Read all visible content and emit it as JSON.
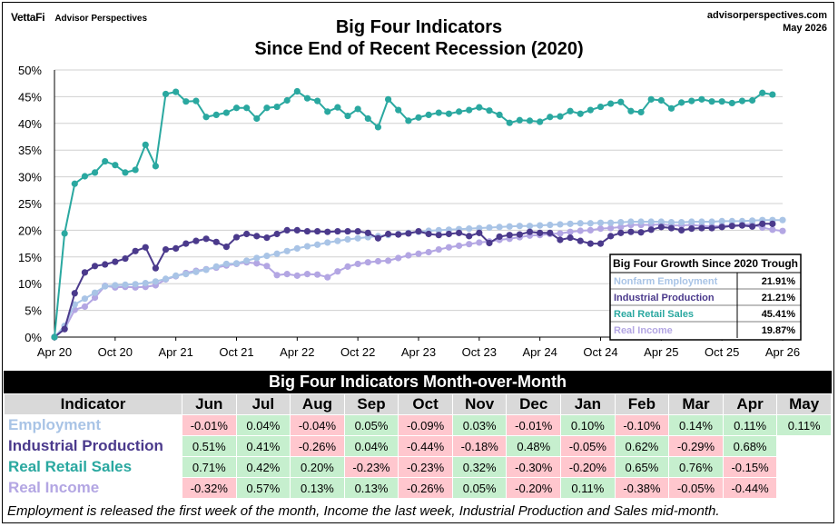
{
  "brand": {
    "logo": "VettaFi",
    "sub": "Advisor Perspectives"
  },
  "site": {
    "url": "advisorperspectives.com",
    "date": "May 2026"
  },
  "title": {
    "line1": "Big Four Indicators",
    "line2": "Since  End of Recent Recession (2020)"
  },
  "colors": {
    "employment": "#a9c4e6",
    "production": "#4b3a8c",
    "retail": "#2aa8a0",
    "income": "#b3a6e3"
  },
  "chart_data": {
    "type": "line",
    "y_ticks": [
      "0%",
      "5%",
      "10%",
      "15%",
      "20%",
      "25%",
      "30%",
      "35%",
      "40%",
      "45%",
      "50%"
    ],
    "ylim": [
      0,
      50
    ],
    "x_ticks": [
      {
        "label": "Apr 20",
        "i": 0
      },
      {
        "label": "Oct 20",
        "i": 6
      },
      {
        "label": "Apr 21",
        "i": 12
      },
      {
        "label": "Oct 21",
        "i": 18
      },
      {
        "label": "Apr 22",
        "i": 24
      },
      {
        "label": "Oct 22",
        "i": 30
      },
      {
        "label": "Apr 23",
        "i": 36
      },
      {
        "label": "Oct 23",
        "i": 42
      },
      {
        "label": "Apr 24",
        "i": 48
      },
      {
        "label": "Oct 24",
        "i": 54
      },
      {
        "label": "Apr 25",
        "i": 60
      },
      {
        "label": "Oct 25",
        "i": 66
      },
      {
        "label": "Apr 26",
        "i": 72
      }
    ],
    "x_start": "2020-04",
    "grid": true,
    "series": [
      {
        "name": "Real Retail Sales",
        "key": "retail",
        "values": [
          0,
          19.4,
          28.7,
          30.1,
          30.8,
          32.9,
          32.2,
          30.8,
          31.3,
          36,
          32,
          45.5,
          45.9,
          44.1,
          44.2,
          41.2,
          41.6,
          42,
          42.9,
          42.9,
          40.9,
          42.9,
          43.1,
          44.3,
          46,
          44.7,
          44.2,
          42.2,
          43,
          41.4,
          42.7,
          40.9,
          39.3,
          44.5,
          42.5,
          40.5,
          41.1,
          41.6,
          42,
          41.8,
          42.2,
          42.5,
          43,
          42.4,
          41.6,
          40.1,
          40.6,
          40.5,
          40.3,
          41.2,
          41.3,
          42.3,
          41.8,
          42.5,
          43.1,
          43.7,
          44,
          42.3,
          42.1,
          44.5,
          44.3,
          42.8,
          43.9,
          44.2,
          44.5,
          44.1,
          44.1,
          43.8,
          44.2,
          44.3,
          45.7,
          45.4
        ]
      },
      {
        "name": "Industrial Production",
        "key": "production",
        "values": [
          0,
          1.5,
          8.2,
          12.1,
          13.3,
          13.6,
          14.1,
          14.7,
          16.1,
          16.8,
          12.9,
          16.4,
          16.6,
          17.5,
          18,
          18.4,
          17.8,
          16.9,
          18.7,
          19.3,
          18.9,
          18.6,
          19.3,
          20,
          20,
          19.8,
          19.8,
          19.7,
          19.8,
          19.8,
          19.8,
          19.5,
          18.5,
          19.3,
          19.2,
          19.4,
          19.8,
          19.3,
          19.1,
          19.3,
          19.5,
          18.9,
          19.5,
          17.6,
          18.8,
          19.1,
          19.2,
          19.7,
          19.5,
          19.5,
          18.2,
          18.6,
          18,
          17.5,
          17.5,
          18.9,
          19.5,
          19.7,
          19.6,
          20.1,
          20.6,
          20.4,
          20,
          20.3,
          20.4,
          20.4,
          20.6,
          20.8,
          20.9,
          20.7,
          21.2,
          21.2
        ]
      },
      {
        "name": "Nonfarm Employment",
        "key": "employment",
        "values": [
          0,
          2.1,
          6.1,
          7.2,
          8.3,
          9.5,
          9.7,
          9.8,
          9.9,
          10.1,
          10.4,
          10.9,
          11.5,
          11.8,
          12.2,
          12.6,
          13.2,
          13.7,
          13.8,
          14.3,
          14.8,
          15.2,
          15.6,
          16.1,
          16.6,
          17,
          17.3,
          17.7,
          18,
          18.3,
          18.5,
          18.7,
          18.9,
          19.1,
          19.3,
          19.5,
          19.7,
          19.9,
          20,
          20.1,
          20.2,
          20.3,
          20.4,
          20.5,
          20.6,
          20.7,
          20.8,
          20.8,
          20.9,
          21,
          21.1,
          21.2,
          21.3,
          21.3,
          21.4,
          21.4,
          21.5,
          21.6,
          21.6,
          21.6,
          21.6,
          21.5,
          21.5,
          21.6,
          21.6,
          21.6,
          21.7,
          21.7,
          21.7,
          21.8,
          21.9,
          21.9,
          21.91
        ]
      },
      {
        "name": "Real Income",
        "key": "income",
        "values": [
          0,
          1.5,
          5.1,
          5.7,
          7.4,
          9.6,
          9.3,
          9.4,
          9.3,
          9.4,
          9.7,
          10.8,
          11.4,
          12,
          12.4,
          12.7,
          13,
          13.4,
          13.7,
          14,
          13.8,
          13.3,
          11.6,
          11.8,
          11.5,
          11.8,
          11.7,
          11.2,
          12.3,
          13.2,
          13.7,
          14,
          14.2,
          14.3,
          14.8,
          15.3,
          15.6,
          15.9,
          16.4,
          16.8,
          17.1,
          17.4,
          17.7,
          17.9,
          18.2,
          18.4,
          18.7,
          19,
          19.1,
          19.3,
          19.4,
          19.7,
          19.9,
          20,
          20.3,
          20.4,
          20.6,
          21,
          21,
          21,
          21.1,
          20.9,
          20.9,
          21,
          20.8,
          20.7,
          20.8,
          20.9,
          21,
          21.1,
          20.5,
          20.1,
          19.87
        ]
      }
    ],
    "summary_box": {
      "title": "Big Four Growth Since 2020 Trough",
      "rows": [
        {
          "label": "Nonfarm Employment",
          "value": "21.91%",
          "key": "employment"
        },
        {
          "label": "Industrial Production",
          "value": "21.21%",
          "key": "production"
        },
        {
          "label": "Real Retail Sales",
          "value": "45.41%",
          "key": "retail"
        },
        {
          "label": "Real Income",
          "value": "19.87%",
          "key": "income"
        }
      ]
    }
  },
  "mom_table": {
    "title": "Big Four Indicators Month-over-Month",
    "header": [
      "Indicator",
      "Jun",
      "Jul",
      "Aug",
      "Sep",
      "Oct",
      "Nov",
      "Dec",
      "Jan",
      "Feb",
      "Mar",
      "Apr",
      "May"
    ],
    "rows": [
      {
        "name": "Employment",
        "key": "employment",
        "cells": [
          "-0.01%",
          "0.04%",
          "-0.04%",
          "0.05%",
          "-0.09%",
          "0.03%",
          "-0.01%",
          "0.10%",
          "-0.10%",
          "0.14%",
          "0.11%",
          "0.11%"
        ]
      },
      {
        "name": "Industrial Production",
        "key": "production",
        "cells": [
          "0.51%",
          "0.41%",
          "-0.26%",
          "0.04%",
          "-0.44%",
          "-0.18%",
          "0.48%",
          "-0.05%",
          "0.62%",
          "-0.29%",
          "0.68%",
          ""
        ]
      },
      {
        "name": "Real Retail Sales",
        "key": "retail",
        "cells": [
          "0.71%",
          "0.42%",
          "0.20%",
          "-0.23%",
          "-0.23%",
          "0.32%",
          "-0.30%",
          "-0.20%",
          "0.65%",
          "0.76%",
          "-0.15%",
          ""
        ]
      },
      {
        "name": "Real Income",
        "key": "income",
        "cells": [
          "-0.32%",
          "0.57%",
          "0.13%",
          "0.13%",
          "-0.26%",
          "0.05%",
          "-0.20%",
          "0.11%",
          "-0.38%",
          "-0.05%",
          "-0.44%",
          ""
        ]
      }
    ]
  },
  "footnote": "Employment is released the first week of the month, Income the last week, Industrial Production and Sales mid-month."
}
